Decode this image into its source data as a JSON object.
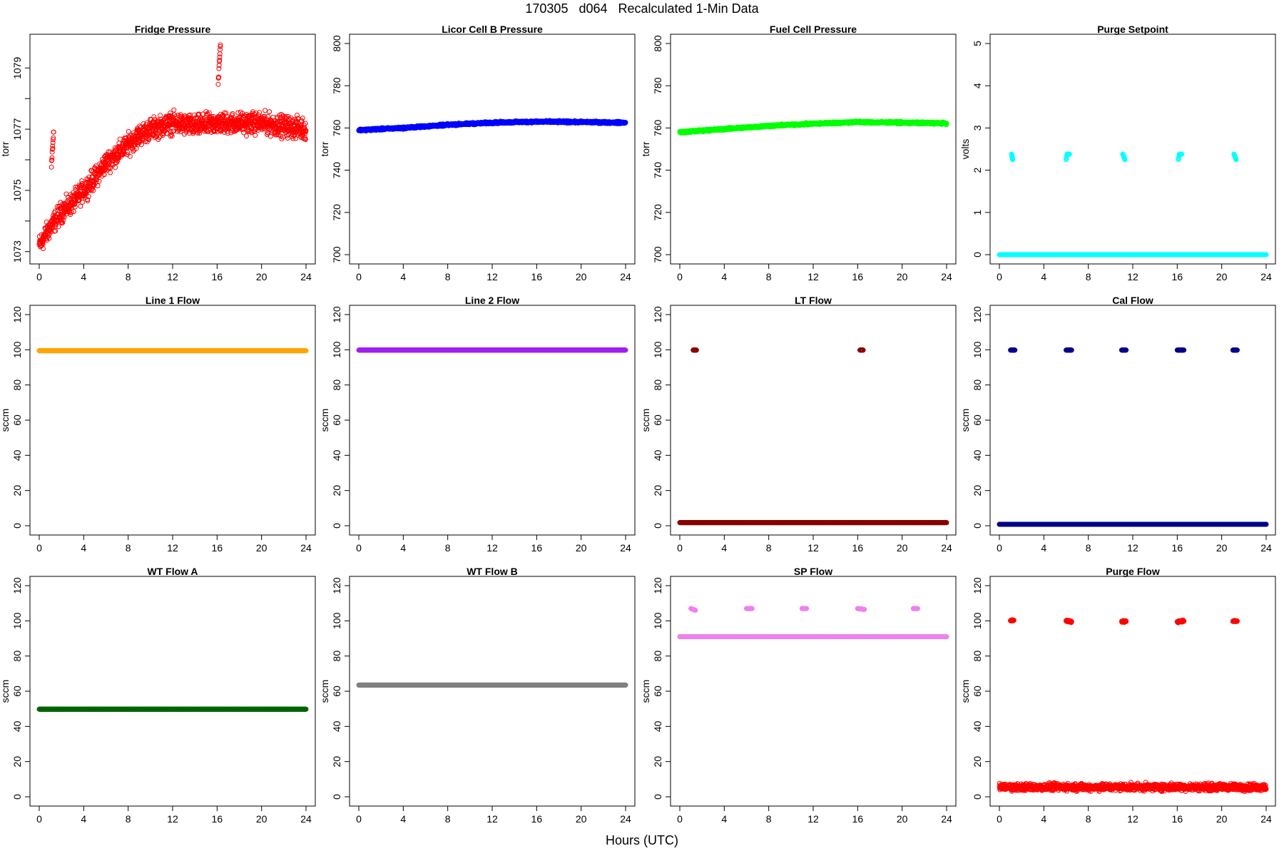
{
  "figure": {
    "title": "170305   d064   Recalculated 1-Min Data",
    "xlabel": "Hours (UTC)"
  },
  "chart_data": [
    {
      "type": "scatter",
      "title": "Fridge Pressure",
      "ylabel": "torr",
      "color": "#ff0000",
      "xlim": [
        0,
        24
      ],
      "ylim": [
        1072.9,
        1079.8
      ],
      "xticks": [
        0,
        4,
        8,
        12,
        16,
        20,
        24
      ],
      "yticks": [
        1073,
        1074,
        1075,
        1076,
        1077,
        1078,
        1079
      ],
      "ytick_labels": [
        "1073",
        "",
        "1075",
        "",
        "1077",
        "",
        "1079"
      ],
      "series": [
        {
          "values": [
            [
              0,
              1073.2
            ],
            [
              1,
              1073.8
            ],
            [
              2,
              1074.3
            ],
            [
              3,
              1074.6
            ],
            [
              4,
              1075.0
            ],
            [
              5,
              1075.4
            ],
            [
              6,
              1075.9
            ],
            [
              7,
              1076.2
            ],
            [
              8,
              1076.5
            ],
            [
              9,
              1076.8
            ],
            [
              10,
              1077.0
            ],
            [
              11,
              1077.1
            ],
            [
              12,
              1077.2
            ],
            [
              14,
              1077.1
            ],
            [
              16,
              1077.2
            ],
            [
              18,
              1077.2
            ],
            [
              20,
              1077.2
            ],
            [
              22,
              1077.1
            ],
            [
              24,
              1077.0
            ]
          ],
          "noise": 0.28
        },
        {
          "values": [
            [
              1.1,
              1075.8
            ],
            [
              1.2,
              1076.4
            ],
            [
              1.3,
              1076.9
            ]
          ],
          "noise": 0.1
        },
        {
          "values": [
            [
              16.1,
              1078.5
            ],
            [
              16.2,
              1079.2
            ],
            [
              16.3,
              1079.8
            ]
          ],
          "noise": 0.1
        }
      ]
    },
    {
      "type": "scatter",
      "title": "Licor Cell B Pressure",
      "ylabel": "torr",
      "color": "#0000ff",
      "xlim": [
        0,
        24
      ],
      "ylim": [
        700,
        800
      ],
      "xticks": [
        0,
        4,
        8,
        12,
        16,
        20,
        24
      ],
      "yticks": [
        700,
        720,
        740,
        760,
        780,
        800
      ],
      "series": [
        {
          "values": [
            [
              0,
              759
            ],
            [
              4,
              760
            ],
            [
              8,
              761.5
            ],
            [
              12,
              762.5
            ],
            [
              16,
              763
            ],
            [
              20,
              762.8
            ],
            [
              24,
              762.5
            ]
          ],
          "noise": 0.4
        }
      ]
    },
    {
      "type": "scatter",
      "title": "Fuel Cell Pressure",
      "ylabel": "torr",
      "color": "#00ff00",
      "xlim": [
        0,
        24
      ],
      "ylim": [
        700,
        800
      ],
      "xticks": [
        0,
        4,
        8,
        12,
        16,
        20,
        24
      ],
      "yticks": [
        700,
        720,
        740,
        760,
        780,
        800
      ],
      "series": [
        {
          "values": [
            [
              0,
              758
            ],
            [
              4,
              759.5
            ],
            [
              8,
              761
            ],
            [
              12,
              762
            ],
            [
              16,
              762.8
            ],
            [
              20,
              762.5
            ],
            [
              24,
              762.2
            ]
          ],
          "noise": 0.4
        }
      ]
    },
    {
      "type": "scatter",
      "title": "Purge Setpoint",
      "ylabel": "volts",
      "color": "#00ffff",
      "xlim": [
        0,
        24
      ],
      "ylim": [
        0,
        5
      ],
      "xticks": [
        0,
        4,
        8,
        12,
        16,
        20,
        24
      ],
      "yticks": [
        0,
        1,
        2,
        3,
        4,
        5
      ],
      "series": [
        {
          "values": [
            [
              0,
              0
            ],
            [
              24,
              0
            ]
          ],
          "noise": 0
        },
        {
          "values": [
            [
              1.1,
              2.38
            ],
            [
              1.2,
              2.25
            ]
          ],
          "noise": 0
        },
        {
          "values": [
            [
              6.0,
              2.25
            ],
            [
              6.1,
              2.38
            ],
            [
              6.3,
              2.38
            ]
          ],
          "noise": 0
        },
        {
          "values": [
            [
              11.1,
              2.38
            ],
            [
              11.3,
              2.25
            ]
          ],
          "noise": 0
        },
        {
          "values": [
            [
              16.1,
              2.25
            ],
            [
              16.2,
              2.38
            ],
            [
              16.4,
              2.38
            ]
          ],
          "noise": 0
        },
        {
          "values": [
            [
              21.1,
              2.38
            ],
            [
              21.3,
              2.25
            ]
          ],
          "noise": 0
        }
      ]
    },
    {
      "type": "scatter",
      "title": "Line 1 Flow",
      "ylabel": "sccm",
      "color": "#ffa500",
      "xlim": [
        0,
        24
      ],
      "ylim": [
        0,
        120
      ],
      "xticks": [
        0,
        4,
        8,
        12,
        16,
        20,
        24
      ],
      "yticks": [
        0,
        20,
        40,
        60,
        80,
        100,
        120
      ],
      "series": [
        {
          "values": [
            [
              0,
              99.5
            ],
            [
              24,
              99.5
            ]
          ],
          "noise": 0
        }
      ]
    },
    {
      "type": "scatter",
      "title": "Line 2 Flow",
      "ylabel": "sccm",
      "color": "#a020f0",
      "xlim": [
        0,
        24
      ],
      "ylim": [
        0,
        120
      ],
      "xticks": [
        0,
        4,
        8,
        12,
        16,
        20,
        24
      ],
      "yticks": [
        0,
        20,
        40,
        60,
        80,
        100,
        120
      ],
      "series": [
        {
          "values": [
            [
              0,
              99.8
            ],
            [
              24,
              99.8
            ]
          ],
          "noise": 0
        }
      ]
    },
    {
      "type": "scatter",
      "title": "LT Flow",
      "ylabel": "sccm",
      "color": "#8b0000",
      "xlim": [
        0,
        24
      ],
      "ylim": [
        0,
        120
      ],
      "xticks": [
        0,
        4,
        8,
        12,
        16,
        20,
        24
      ],
      "yticks": [
        0,
        20,
        40,
        60,
        80,
        100,
        120
      ],
      "series": [
        {
          "values": [
            [
              0,
              1.8
            ],
            [
              24,
              1.8
            ]
          ],
          "noise": 0
        },
        {
          "values": [
            [
              1.2,
              99.8
            ],
            [
              1.5,
              99.8
            ]
          ],
          "noise": 0
        },
        {
          "values": [
            [
              16.2,
              99.8
            ],
            [
              16.5,
              99.8
            ]
          ],
          "noise": 0
        }
      ]
    },
    {
      "type": "scatter",
      "title": "Cal Flow",
      "ylabel": "sccm",
      "color": "#00008b",
      "xlim": [
        0,
        24
      ],
      "ylim": [
        0,
        120
      ],
      "xticks": [
        0,
        4,
        8,
        12,
        16,
        20,
        24
      ],
      "yticks": [
        0,
        20,
        40,
        60,
        80,
        100,
        120
      ],
      "series": [
        {
          "values": [
            [
              0,
              0.8
            ],
            [
              24,
              0.8
            ]
          ],
          "noise": 0
        },
        {
          "values": [
            [
              1.0,
              99.8
            ],
            [
              1.4,
              99.8
            ]
          ],
          "noise": 0
        },
        {
          "values": [
            [
              6.0,
              99.8
            ],
            [
              6.5,
              99.8
            ]
          ],
          "noise": 0
        },
        {
          "values": [
            [
              11.0,
              99.8
            ],
            [
              11.4,
              99.8
            ]
          ],
          "noise": 0
        },
        {
          "values": [
            [
              16.0,
              99.8
            ],
            [
              16.6,
              99.8
            ]
          ],
          "noise": 0
        },
        {
          "values": [
            [
              21.0,
              99.8
            ],
            [
              21.4,
              99.8
            ]
          ],
          "noise": 0
        }
      ]
    },
    {
      "type": "scatter",
      "title": "WT Flow A",
      "ylabel": "sccm",
      "color": "#006400",
      "xlim": [
        0,
        24
      ],
      "ylim": [
        0,
        120
      ],
      "xticks": [
        0,
        4,
        8,
        12,
        16,
        20,
        24
      ],
      "yticks": [
        0,
        20,
        40,
        60,
        80,
        100,
        120
      ],
      "series": [
        {
          "values": [
            [
              0,
              49.8
            ],
            [
              24,
              49.8
            ]
          ],
          "noise": 0
        }
      ]
    },
    {
      "type": "scatter",
      "title": "WT Flow B",
      "ylabel": "sccm",
      "color": "#808080",
      "xlim": [
        0,
        24
      ],
      "ylim": [
        0,
        120
      ],
      "xticks": [
        0,
        4,
        8,
        12,
        16,
        20,
        24
      ],
      "yticks": [
        0,
        20,
        40,
        60,
        80,
        100,
        120
      ],
      "series": [
        {
          "values": [
            [
              0,
              63.5
            ],
            [
              24,
              63.5
            ]
          ],
          "noise": 0
        }
      ]
    },
    {
      "type": "scatter",
      "title": "SP Flow",
      "ylabel": "sccm",
      "color": "#ee82ee",
      "xlim": [
        0,
        24
      ],
      "ylim": [
        0,
        120
      ],
      "xticks": [
        0,
        4,
        8,
        12,
        16,
        20,
        24
      ],
      "yticks": [
        0,
        20,
        40,
        60,
        80,
        100,
        120
      ],
      "series": [
        {
          "values": [
            [
              0,
              91
            ],
            [
              24,
              91
            ]
          ],
          "noise": 0
        },
        {
          "values": [
            [
              1.0,
              107
            ],
            [
              1.4,
              106
            ]
          ],
          "noise": 0
        },
        {
          "values": [
            [
              6.0,
              107
            ],
            [
              6.5,
              107
            ]
          ],
          "noise": 0
        },
        {
          "values": [
            [
              11.0,
              107
            ],
            [
              11.4,
              107
            ]
          ],
          "noise": 0
        },
        {
          "values": [
            [
              16.0,
              107
            ],
            [
              16.6,
              106.5
            ]
          ],
          "noise": 0
        },
        {
          "values": [
            [
              21.0,
              107
            ],
            [
              21.4,
              107
            ]
          ],
          "noise": 0
        }
      ]
    },
    {
      "type": "scatter",
      "title": "Purge Flow",
      "ylabel": "sccm",
      "color": "#ff0000",
      "xlim": [
        0,
        24
      ],
      "ylim": [
        0,
        120
      ],
      "xticks": [
        0,
        4,
        8,
        12,
        16,
        20,
        24
      ],
      "yticks": [
        0,
        20,
        40,
        60,
        80,
        100,
        120
      ],
      "series": [
        {
          "values": [
            [
              0,
              5.5
            ],
            [
              24,
              5.5
            ]
          ],
          "noise": 1.6
        },
        {
          "values": [
            [
              1.0,
              100.2
            ],
            [
              1.3,
              100.2
            ]
          ],
          "noise": 0.4
        },
        {
          "values": [
            [
              6.0,
              100
            ],
            [
              6.5,
              99.5
            ]
          ],
          "noise": 0.5
        },
        {
          "values": [
            [
              11.0,
              99.5
            ],
            [
              11.4,
              99.8
            ]
          ],
          "noise": 0.4
        },
        {
          "values": [
            [
              16.0,
              99.5
            ],
            [
              16.6,
              100
            ]
          ],
          "noise": 0.4
        },
        {
          "values": [
            [
              21.0,
              99.8
            ],
            [
              21.4,
              99.8
            ]
          ],
          "noise": 0.3
        }
      ]
    }
  ]
}
